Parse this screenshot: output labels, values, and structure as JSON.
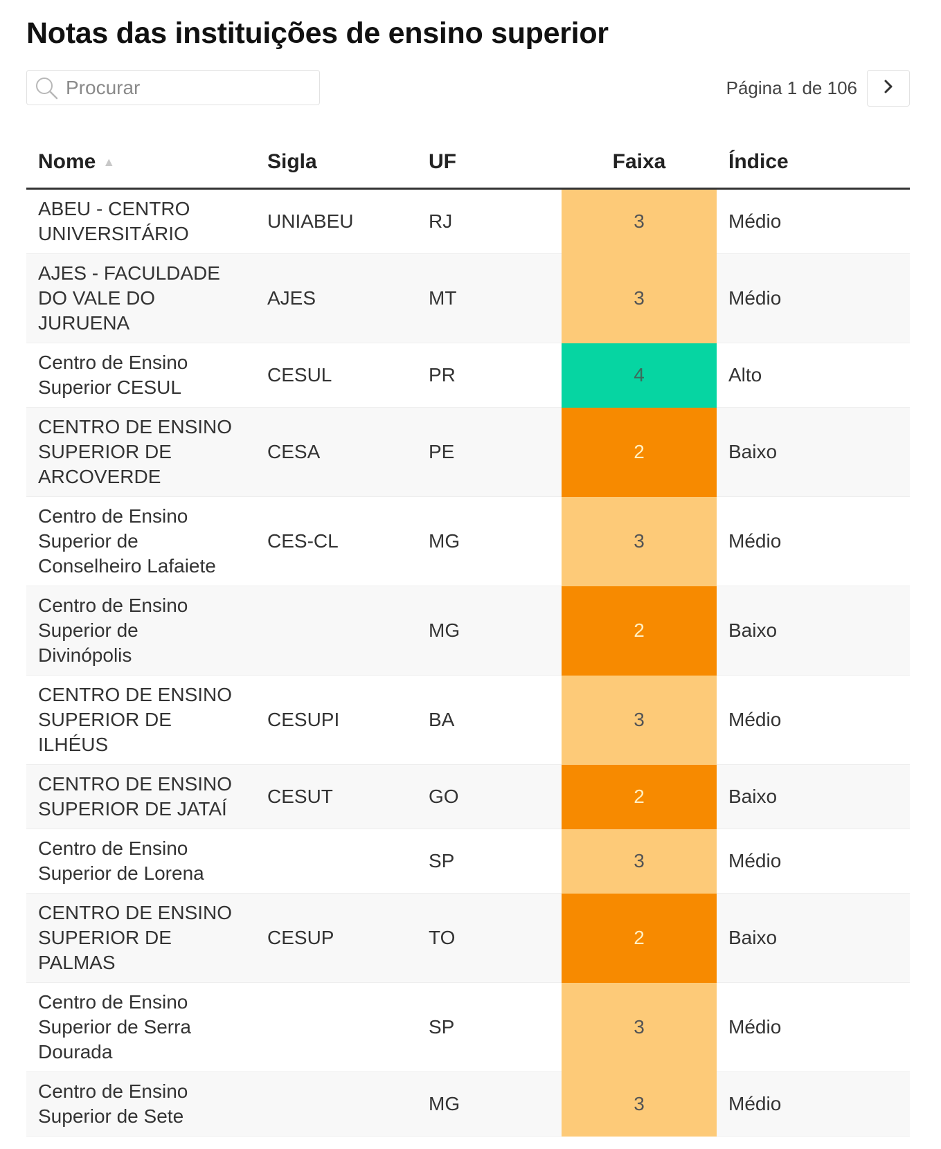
{
  "title": "Notas das instituições de ensino superior",
  "search": {
    "placeholder": "Procurar"
  },
  "pager": {
    "text": "Página 1 de 106"
  },
  "headers": {
    "nome": "Nome",
    "sigla": "Sigla",
    "uf": "UF",
    "faixa": "Faixa",
    "indice": "Índice"
  },
  "colors": {
    "faixa_2": "#f78a00",
    "faixa_3": "#fdca78",
    "faixa_4": "#06d5a2"
  },
  "rows": [
    {
      "name_lines": [
        "ABEU - CENTRO",
        "UNIVERSITÁRIO"
      ],
      "sigla": "UNIABEU",
      "uf": "RJ",
      "faixa": "3",
      "indice": "Médio"
    },
    {
      "name_lines": [
        "AJES - FACULDADE",
        "DO VALE DO",
        "JURUENA"
      ],
      "sigla": "AJES",
      "uf": "MT",
      "faixa": "3",
      "indice": "Médio"
    },
    {
      "name_lines": [
        "Centro de Ensino",
        "Superior CESUL"
      ],
      "sigla": "CESUL",
      "uf": "PR",
      "faixa": "4",
      "indice": "Alto"
    },
    {
      "name_lines": [
        "CENTRO DE ENSINO",
        "SUPERIOR DE",
        "ARCOVERDE"
      ],
      "sigla": "CESA",
      "uf": "PE",
      "faixa": "2",
      "indice": "Baixo"
    },
    {
      "name_lines": [
        "Centro de Ensino",
        "Superior de",
        "Conselheiro Lafaiete"
      ],
      "sigla": "CES-CL",
      "uf": "MG",
      "faixa": "3",
      "indice": "Médio"
    },
    {
      "name_lines": [
        "Centro de Ensino",
        "Superior de",
        "Divinópolis"
      ],
      "sigla": "",
      "uf": "MG",
      "faixa": "2",
      "indice": "Baixo"
    },
    {
      "name_lines": [
        "CENTRO DE ENSINO",
        "SUPERIOR DE",
        "ILHÉUS"
      ],
      "sigla": "CESUPI",
      "uf": "BA",
      "faixa": "3",
      "indice": "Médio"
    },
    {
      "name_lines": [
        "CENTRO DE ENSINO",
        "SUPERIOR DE JATAÍ"
      ],
      "sigla": "CESUT",
      "uf": "GO",
      "faixa": "2",
      "indice": "Baixo"
    },
    {
      "name_lines": [
        "Centro de Ensino",
        "Superior de Lorena"
      ],
      "sigla": "",
      "uf": "SP",
      "faixa": "3",
      "indice": "Médio"
    },
    {
      "name_lines": [
        "CENTRO DE ENSINO",
        "SUPERIOR DE",
        "PALMAS"
      ],
      "sigla": "CESUP",
      "uf": "TO",
      "faixa": "2",
      "indice": "Baixo"
    },
    {
      "name_lines": [
        "Centro de Ensino",
        "Superior de Serra",
        "Dourada"
      ],
      "sigla": "",
      "uf": "SP",
      "faixa": "3",
      "indice": "Médio"
    },
    {
      "name_lines": [
        "Centro de Ensino",
        "Superior de Sete"
      ],
      "sigla": "",
      "uf": "MG",
      "faixa": "3",
      "indice": "Médio"
    }
  ]
}
